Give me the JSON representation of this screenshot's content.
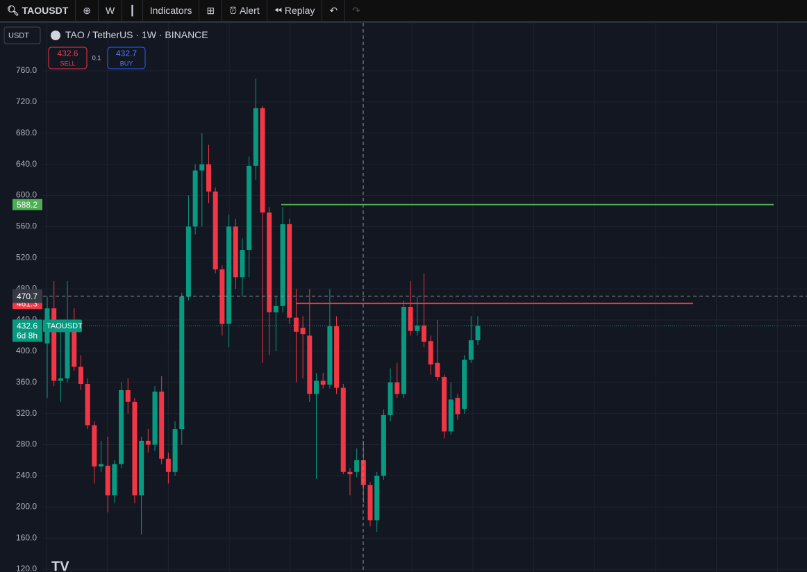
{
  "toolbar": {
    "symbol": "TAOUSDT",
    "interval": "W",
    "indicators": "Indicators",
    "alert": "Alert",
    "replay": "Replay"
  },
  "header": {
    "currency": "USDT",
    "title": "TAO / TetherUS · 1W · BINANCE",
    "sell": {
      "price": 432.6,
      "label": "SELL"
    },
    "spread": 0.1,
    "buy": {
      "price": 432.7,
      "label": "BUY"
    }
  },
  "chart_data": {
    "type": "candlestick",
    "open": [
      410,
      455,
      362,
      365,
      440,
      380,
      358,
      305,
      252,
      253,
      215,
      255,
      350,
      335,
      215,
      285,
      280,
      348,
      262,
      245,
      300,
      470,
      560,
      632,
      640,
      605,
      505,
      435,
      560,
      495,
      530,
      638,
      712,
      578,
      450,
      458,
      563,
      443,
      430,
      420,
      345,
      362,
      357,
      432,
      353,
      245,
      245,
      260,
      228,
      183,
      240,
      318,
      360,
      345,
      457,
      426,
      433,
      413,
      385,
      367,
      297,
      340,
      326,
      389,
      414
    ],
    "high": [
      470,
      490,
      440,
      490,
      455,
      395,
      365,
      310,
      285,
      290,
      260,
      360,
      365,
      340,
      290,
      300,
      355,
      368,
      270,
      310,
      475,
      600,
      640,
      680,
      665,
      610,
      510,
      575,
      570,
      545,
      650,
      750,
      715,
      585,
      470,
      585,
      570,
      480,
      445,
      480,
      372,
      372,
      480,
      445,
      358,
      250,
      275,
      285,
      232,
      245,
      325,
      378,
      385,
      465,
      490,
      470,
      500,
      420,
      440,
      370,
      360,
      345,
      395,
      445,
      445
    ],
    "low": [
      340,
      355,
      335,
      360,
      375,
      350,
      300,
      230,
      245,
      193,
      205,
      250,
      320,
      205,
      165,
      270,
      272,
      255,
      230,
      240,
      280,
      465,
      550,
      560,
      590,
      500,
      420,
      405,
      480,
      470,
      495,
      620,
      385,
      395,
      400,
      450,
      435,
      360,
      365,
      335,
      236,
      352,
      352,
      345,
      242,
      215,
      238,
      205,
      175,
      168,
      235,
      310,
      340,
      340,
      420,
      420,
      405,
      370,
      362,
      288,
      293,
      312,
      320,
      385,
      408
    ],
    "close": [
      455,
      362,
      365,
      432,
      380,
      358,
      305,
      252,
      255,
      215,
      255,
      350,
      335,
      215,
      285,
      280,
      348,
      262,
      245,
      300,
      470,
      560,
      632,
      640,
      605,
      505,
      435,
      560,
      495,
      530,
      638,
      712,
      578,
      450,
      458,
      563,
      443,
      425,
      422,
      345,
      362,
      357,
      432,
      353,
      245,
      242,
      260,
      228,
      183,
      240,
      318,
      360,
      345,
      457,
      426,
      433,
      412,
      383,
      367,
      297,
      338,
      319,
      389,
      414,
      432.6
    ],
    "colors": {
      "up": "#089981",
      "down": "#f23645"
    },
    "ylim": [
      116.5,
      819.7
    ],
    "yticks": [
      {
        "value": 760,
        "label": "760.0"
      },
      {
        "value": 720,
        "label": "720.0"
      },
      {
        "value": 680,
        "label": "680.0"
      },
      {
        "value": 640,
        "label": "640.0"
      },
      {
        "value": 600,
        "label": "600.0"
      },
      {
        "value": 560,
        "label": "560.0"
      },
      {
        "value": 520,
        "label": "520.0"
      },
      {
        "value": 480,
        "label": "480.0"
      },
      {
        "value": 440,
        "label": "440.0"
      },
      {
        "value": 400,
        "label": "400.0"
      },
      {
        "value": 360,
        "label": "360.0"
      },
      {
        "value": 320,
        "label": "320.0"
      },
      {
        "value": 280,
        "label": "280.0"
      },
      {
        "value": 240,
        "label": "240.0"
      },
      {
        "value": 200,
        "label": "200.0"
      },
      {
        "value": 160,
        "label": "160.0"
      },
      {
        "value": 120,
        "label": "120.0"
      }
    ],
    "grid": true,
    "levels": [
      {
        "value": 588.2,
        "color": "#4caf50"
      },
      {
        "value": 461.3,
        "color": "#f23645"
      }
    ],
    "crosshair": {
      "value": 470.7
    },
    "last": {
      "value": 432.6,
      "countdown": "6d 8h",
      "symbol": "TAOUSDT"
    }
  }
}
